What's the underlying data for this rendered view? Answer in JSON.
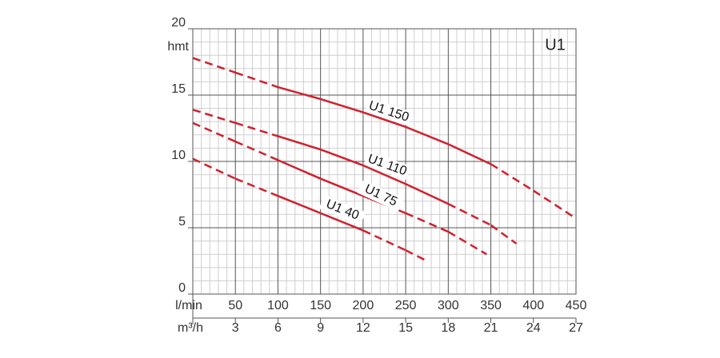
{
  "chart_data": {
    "type": "line",
    "chart_label": "U1",
    "y_label": "hmt",
    "x_label": "l/min",
    "x2_label": "m³/h",
    "xlim": [
      0,
      450
    ],
    "xticks": [
      50,
      100,
      150,
      200,
      250,
      300,
      350,
      400,
      450
    ],
    "x2lim": [
      0,
      27
    ],
    "x2ticks": [
      3,
      6,
      9,
      12,
      15,
      18,
      21,
      24,
      27
    ],
    "ylim": [
      0,
      20
    ],
    "yticks": [
      0,
      5,
      10,
      15,
      20
    ],
    "grid": true,
    "minor_divisions": 5,
    "series": [
      {
        "name": "U1 150",
        "color": "#d0202e",
        "x": [
          0,
          50,
          100,
          150,
          200,
          250,
          300,
          350,
          400,
          450
        ],
        "values": [
          17.8,
          16.7,
          15.6,
          14.7,
          13.7,
          12.6,
          11.3,
          9.8,
          7.8,
          5.7
        ],
        "styles": [
          "dashed",
          "dashed",
          "solid",
          "solid",
          "solid",
          "solid",
          "solid",
          "dashed",
          "dashed"
        ]
      },
      {
        "name": "U1 110",
        "color": "#d0202e",
        "x": [
          0,
          50,
          100,
          150,
          200,
          250,
          300,
          350,
          380
        ],
        "values": [
          13.9,
          12.9,
          11.9,
          10.9,
          9.7,
          8.3,
          6.8,
          5.2,
          3.8
        ],
        "styles": [
          "dashed",
          "dashed",
          "solid",
          "solid",
          "solid",
          "solid",
          "dashed",
          "dashed"
        ]
      },
      {
        "name": "U1 75",
        "color": "#d0202e",
        "x": [
          0,
          50,
          100,
          150,
          200,
          250,
          300,
          345
        ],
        "values": [
          12.9,
          11.5,
          10.1,
          8.7,
          7.4,
          6.1,
          4.7,
          3.0
        ],
        "styles": [
          "dashed",
          "dashed",
          "solid",
          "solid",
          "solid",
          "dashed",
          "dashed"
        ]
      },
      {
        "name": "U1 40",
        "color": "#d0202e",
        "x": [
          0,
          50,
          100,
          150,
          200,
          250,
          275
        ],
        "values": [
          10.2,
          8.7,
          7.4,
          6.1,
          4.8,
          3.3,
          2.5
        ],
        "styles": [
          "dashed",
          "dashed",
          "solid",
          "solid",
          "dashed",
          "dashed"
        ]
      }
    ]
  }
}
